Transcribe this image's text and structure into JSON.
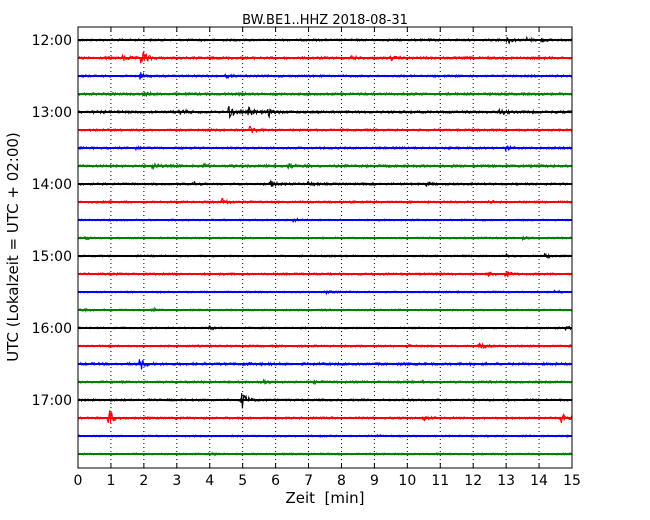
{
  "chart_data": {
    "type": "line",
    "title": "BW.BE1..HHZ 2018-08-31",
    "xlabel": "Zeit  [min]",
    "ylabel": "UTC (Lokalzeit = UTC + 02:00)",
    "xlim": [
      0,
      15
    ],
    "x_ticks": [
      0,
      1,
      2,
      3,
      4,
      5,
      6,
      7,
      8,
      9,
      10,
      11,
      12,
      13,
      14,
      15
    ],
    "x_tick_labels": [
      "0",
      "1",
      "2",
      "3",
      "4",
      "5",
      "6",
      "7",
      "8",
      "9",
      "10",
      "11",
      "12",
      "13",
      "14",
      "15"
    ],
    "y_tick_labels": [
      "12:00",
      "13:00",
      "14:00",
      "15:00",
      "16:00",
      "17:00"
    ],
    "vertical_grid": "dotted",
    "colors": [
      "#000000",
      "#ff0000",
      "#0000ff",
      "#008000"
    ],
    "traces": [
      {
        "start": "12:00",
        "color": "#000000",
        "noise": 1.0,
        "events": [
          [
            13.05,
            3.5
          ],
          [
            13.6,
            2.5
          ],
          [
            14.1,
            1.5
          ]
        ]
      },
      {
        "start": "12:15",
        "color": "#ff0000",
        "noise": 1.2,
        "events": [
          [
            1.95,
            9.0
          ],
          [
            1.4,
            3.0
          ],
          [
            8.3,
            2.0
          ],
          [
            9.5,
            1.8
          ]
        ]
      },
      {
        "start": "12:30",
        "color": "#0000ff",
        "noise": 1.0,
        "events": [
          [
            1.9,
            3.0
          ],
          [
            4.5,
            1.5
          ]
        ]
      },
      {
        "start": "12:45",
        "color": "#008000",
        "noise": 1.2,
        "events": [
          [
            2.0,
            1.5
          ],
          [
            15.0,
            3.0
          ]
        ]
      },
      {
        "start": "13:00",
        "color": "#000000",
        "noise": 1.2,
        "events": [
          [
            4.6,
            5.5
          ],
          [
            5.2,
            4.5
          ],
          [
            5.8,
            4.0
          ],
          [
            3.1,
            3.5
          ],
          [
            12.8,
            3.0
          ]
        ]
      },
      {
        "start": "13:15",
        "color": "#ff0000",
        "noise": 1.0,
        "events": [
          [
            5.25,
            5.0
          ]
        ]
      },
      {
        "start": "13:30",
        "color": "#0000ff",
        "noise": 1.0,
        "events": [
          [
            13.0,
            3.0
          ],
          [
            1.8,
            1.5
          ]
        ]
      },
      {
        "start": "13:45",
        "color": "#008000",
        "noise": 1.2,
        "events": [
          [
            2.3,
            3.0
          ],
          [
            3.8,
            2.0
          ],
          [
            6.4,
            2.5
          ]
        ]
      },
      {
        "start": "14:00",
        "color": "#000000",
        "noise": 1.0,
        "events": [
          [
            5.85,
            3.0
          ],
          [
            7.0,
            2.0
          ],
          [
            3.5,
            2.0
          ],
          [
            10.6,
            1.5
          ]
        ]
      },
      {
        "start": "14:15",
        "color": "#ff0000",
        "noise": 1.0,
        "events": [
          [
            4.4,
            4.0
          ],
          [
            12.5,
            1.5
          ]
        ]
      },
      {
        "start": "14:30",
        "color": "#0000ff",
        "noise": 0.8,
        "events": [
          [
            6.55,
            2.0
          ]
        ]
      },
      {
        "start": "14:45",
        "color": "#008000",
        "noise": 0.8,
        "events": [
          [
            0.2,
            1.5
          ],
          [
            13.5,
            1.5
          ]
        ]
      },
      {
        "start": "15:00",
        "color": "#000000",
        "noise": 0.8,
        "events": [
          [
            14.2,
            2.0
          ],
          [
            13.0,
            1.5
          ]
        ]
      },
      {
        "start": "15:15",
        "color": "#ff0000",
        "noise": 1.0,
        "events": [
          [
            12.5,
            2.5
          ],
          [
            13.0,
            3.0
          ]
        ]
      },
      {
        "start": "15:30",
        "color": "#0000ff",
        "noise": 0.8,
        "events": [
          [
            7.5,
            1.5
          ],
          [
            14.5,
            1.5
          ]
        ]
      },
      {
        "start": "15:45",
        "color": "#008000",
        "noise": 0.8,
        "events": [
          [
            2.2,
            2.5
          ],
          [
            0.1,
            1.5
          ]
        ]
      },
      {
        "start": "16:00",
        "color": "#000000",
        "noise": 0.8,
        "events": [
          [
            4.0,
            2.0
          ],
          [
            14.8,
            2.0
          ]
        ]
      },
      {
        "start": "16:15",
        "color": "#ff0000",
        "noise": 0.9,
        "events": [
          [
            12.2,
            3.5
          ],
          [
            10.0,
            1.5
          ]
        ]
      },
      {
        "start": "16:30",
        "color": "#0000ff",
        "noise": 1.2,
        "events": [
          [
            1.9,
            6.0
          ],
          [
            5.0,
            1.5
          ]
        ]
      },
      {
        "start": "16:45",
        "color": "#008000",
        "noise": 1.0,
        "events": [
          [
            5.6,
            2.5
          ],
          [
            7.2,
            1.5
          ],
          [
            10.5,
            1.5
          ]
        ]
      },
      {
        "start": "17:00",
        "color": "#000000",
        "noise": 1.0,
        "events": [
          [
            5.0,
            8.0
          ]
        ]
      },
      {
        "start": "17:15",
        "color": "#ff0000",
        "noise": 1.0,
        "events": [
          [
            0.95,
            8.0
          ],
          [
            14.65,
            5.5
          ],
          [
            10.5,
            2.5
          ]
        ]
      },
      {
        "start": "17:30",
        "color": "#0000ff",
        "noise": 0.8,
        "events": [
          [
            9.0,
            1.5
          ]
        ]
      },
      {
        "start": "17:45",
        "color": "#008000",
        "noise": 0.8,
        "events": [
          [
            4.0,
            1.5
          ]
        ]
      }
    ]
  }
}
